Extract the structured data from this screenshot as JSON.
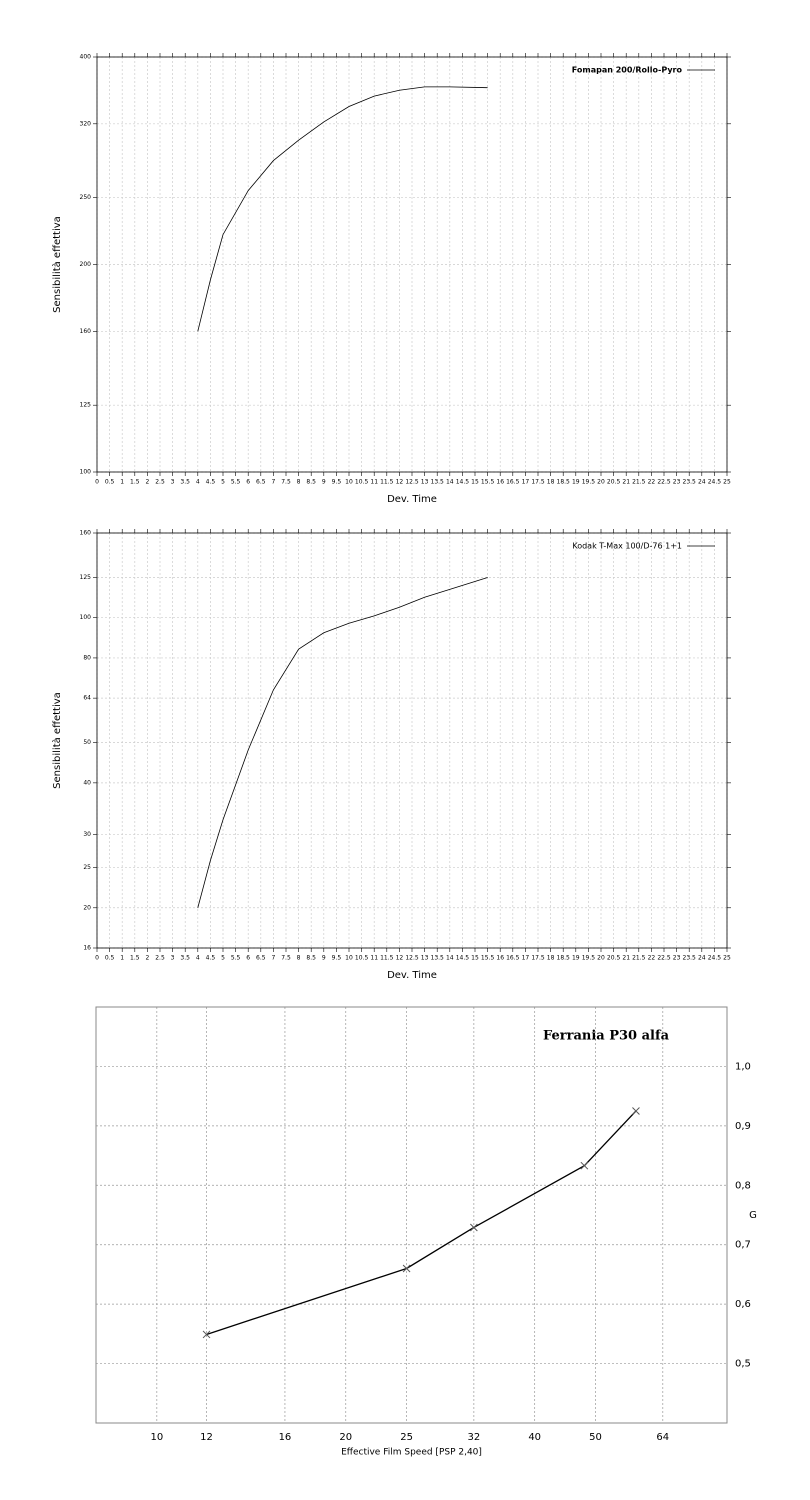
{
  "chart_data": [
    {
      "type": "line",
      "xlabel": "Dev. Time",
      "ylabel": "Sensibilità effettiva",
      "x": [
        4,
        4.5,
        5,
        6,
        7,
        8,
        9,
        10,
        11,
        12,
        13,
        14,
        15.5
      ],
      "series": [
        {
          "name": "Fomapan 200/Rollo-Pyro",
          "color": "#000000",
          "values": [
            160,
            190,
            221,
            256,
            283,
            303,
            322,
            339,
            351,
            358,
            362,
            362,
            361
          ]
        }
      ],
      "xlim": [
        0,
        25
      ],
      "ylim": [
        100,
        400
      ],
      "log_y": true,
      "xticks": [
        0,
        0.5,
        1,
        1.5,
        2,
        2.5,
        3,
        3.5,
        4,
        4.5,
        5,
        5.5,
        6,
        6.5,
        7,
        7.5,
        8,
        8.5,
        9,
        9.5,
        10,
        10.5,
        11,
        11.5,
        12,
        12.5,
        13,
        13.5,
        14,
        14.5,
        15,
        15.5,
        16,
        16.5,
        17,
        17.5,
        18,
        18.5,
        19,
        19.5,
        20,
        20.5,
        21,
        21.5,
        22,
        22.5,
        23,
        23.5,
        24,
        24.5,
        25
      ],
      "yticks": [
        100,
        125,
        160,
        200,
        250,
        320,
        400
      ],
      "grid": true,
      "legend": "upper right"
    },
    {
      "type": "line",
      "xlabel": "Dev. Time",
      "ylabel": "Sensibilità effettiva",
      "x": [
        4,
        4.5,
        5,
        6,
        7,
        8,
        9,
        10,
        11,
        12,
        13,
        14,
        15.5
      ],
      "series": [
        {
          "name": "Kodak T-Max 100/D-76 1+1",
          "color": "#000000",
          "values": [
            20,
            26,
            32.6,
            48,
            67,
            84,
            92,
            97,
            101,
            106,
            112,
            117,
            125
          ]
        }
      ],
      "xlim": [
        0,
        25
      ],
      "ylim": [
        16,
        160
      ],
      "log_y": true,
      "xticks": [
        0,
        0.5,
        1,
        1.5,
        2,
        2.5,
        3,
        3.5,
        4,
        4.5,
        5,
        5.5,
        6,
        6.5,
        7,
        7.5,
        8,
        8.5,
        9,
        9.5,
        10,
        10.5,
        11,
        11.5,
        12,
        12.5,
        13,
        13.5,
        14,
        14.5,
        15,
        15.5,
        16,
        16.5,
        17,
        17.5,
        18,
        18.5,
        19,
        19.5,
        20,
        20.5,
        21,
        21.5,
        22,
        22.5,
        23,
        23.5,
        24,
        24.5,
        25
      ],
      "yticks": [
        16,
        20,
        25,
        30,
        40,
        50,
        64,
        80,
        100,
        125,
        160
      ],
      "grid": true,
      "legend": "upper right"
    },
    {
      "type": "line",
      "title": "Ferrania P30 alfa",
      "xlabel": "Effective Film Speed [PSP 2,40]",
      "ylabel": "G",
      "x": [
        12,
        25,
        32,
        48,
        58
      ],
      "series": [
        {
          "color": "#000000",
          "values": [
            0.549,
            0.66,
            0.729,
            0.833,
            0.925
          ]
        }
      ],
      "marker": "x",
      "xlim": [
        8,
        81
      ],
      "ylim": [
        0.4,
        1.1
      ],
      "log_x": true,
      "y_axis_side": "right",
      "xticks": [
        10,
        12,
        16,
        20,
        25,
        32,
        40,
        50,
        64
      ],
      "yticks": [
        {
          "value": 0.5,
          "label": "0,5"
        },
        {
          "value": 0.6,
          "label": "0,6"
        },
        {
          "value": 0.7,
          "label": "0,7"
        },
        {
          "value": 0.8,
          "label": "0,8"
        },
        {
          "value": 0.9,
          "label": "0,9"
        },
        {
          "value": 1.0,
          "label": "1,0"
        }
      ],
      "grid": true
    }
  ]
}
